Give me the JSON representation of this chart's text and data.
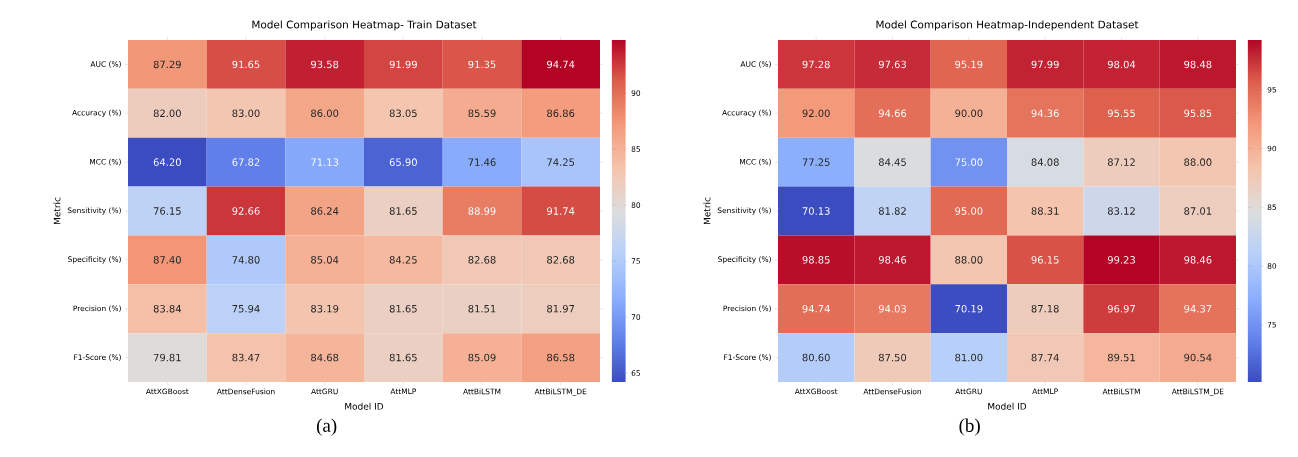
{
  "chart_data": [
    {
      "type": "heatmap",
      "title": "Model Comparison Heatmap- Train Dataset",
      "xlabel": "Model ID",
      "ylabel": "Metric",
      "categories": [
        "AttXGBoost",
        "AttDenseFusion",
        "AttGRU",
        "AttMLP",
        "AttBiLSTM",
        "AttBiLSTM_DE"
      ],
      "y_categories": [
        "AUC (%)",
        "Accuracy (%)",
        "MCC (%)",
        "Sensitivity (%)",
        "Specificity (%)",
        "Precision (%)",
        "F1-Score (%)"
      ],
      "cells": [
        [
          87.29,
          91.65,
          93.58,
          91.99,
          91.35,
          94.74
        ],
        [
          82.0,
          83.0,
          86.0,
          83.05,
          85.59,
          86.86
        ],
        [
          64.2,
          67.82,
          71.13,
          65.9,
          71.46,
          74.25
        ],
        [
          76.15,
          92.66,
          86.24,
          81.65,
          88.99,
          91.74
        ],
        [
          87.4,
          74.8,
          85.04,
          84.25,
          82.68,
          82.68
        ],
        [
          83.84,
          75.94,
          83.19,
          81.65,
          81.51,
          81.97
        ],
        [
          79.81,
          83.47,
          84.68,
          81.65,
          85.09,
          86.58
        ]
      ],
      "cell_labels": [
        [
          "87.29",
          "91.65",
          "93.58",
          "91.99",
          "91.35",
          "94.74"
        ],
        [
          "82.00",
          "83.00",
          "86.00",
          "83.05",
          "85.59",
          "86.86"
        ],
        [
          "64.20",
          "67.82",
          "71.13",
          "65.90",
          "71.46",
          "74.25"
        ],
        [
          "76.15",
          "92.66",
          "86.24",
          "81.65",
          "88.99",
          "91.74"
        ],
        [
          "87.40",
          "74.80",
          "85.04",
          "84.25",
          "82.68",
          "82.68"
        ],
        [
          "83.84",
          "75.94",
          "83.19",
          "81.65",
          "81.51",
          "81.97"
        ],
        [
          "79.81",
          "83.47",
          "84.68",
          "81.65",
          "85.09",
          "86.58"
        ]
      ],
      "clim": [
        64.2,
        94.74
      ],
      "cticks": [
        65,
        70,
        75,
        80,
        85,
        90
      ],
      "annotations": [
        "(a)"
      ]
    },
    {
      "type": "heatmap",
      "title": "Model Comparison Heatmap-Independent Dataset",
      "xlabel": "Model ID",
      "ylabel": "Metric",
      "categories": [
        "AttXGBoost",
        "AttDenseFusion",
        "AttGRU",
        "AttMLP",
        "AttBiLSTM",
        "AttBiLSTM_DE"
      ],
      "y_categories": [
        "AUC (%)",
        "Accuracy (%)",
        "MCC (%)",
        "Sensitivity (%)",
        "Specificity (%)",
        "Precision (%)",
        "F1-Score (%)"
      ],
      "cells": [
        [
          97.28,
          97.63,
          95.19,
          97.99,
          98.04,
          98.48
        ],
        [
          92.0,
          94.66,
          90.0,
          94.36,
          95.55,
          95.85
        ],
        [
          77.25,
          84.45,
          75.0,
          84.08,
          87.12,
          88.0
        ],
        [
          70.13,
          81.82,
          95.0,
          88.31,
          83.12,
          87.01
        ],
        [
          98.85,
          98.46,
          88.0,
          96.15,
          99.23,
          98.46
        ],
        [
          94.74,
          94.03,
          70.19,
          87.18,
          96.97,
          94.37
        ],
        [
          80.6,
          87.5,
          81.0,
          87.74,
          89.51,
          90.54
        ]
      ],
      "cell_labels": [
        [
          "97.28",
          "97.63",
          "95.19",
          "97.99",
          "98.04",
          "98.48"
        ],
        [
          "92.00",
          "94.66",
          "90.00",
          "94.36",
          "95.55",
          "95.85"
        ],
        [
          "77.25",
          "84.45",
          "75.00",
          "84.08",
          "87.12",
          "88.00"
        ],
        [
          "70.13",
          "81.82",
          "95.00",
          "88.31",
          "83.12",
          "87.01"
        ],
        [
          "98.85",
          "98.46",
          "88.00",
          "96.15",
          "99.23",
          "98.46"
        ],
        [
          "94.74",
          "94.03",
          "70.19",
          "87.18",
          "96.97",
          "94.37"
        ],
        [
          "80.60",
          "87.50",
          "81.00",
          "87.74",
          "89.51",
          "90.54"
        ]
      ],
      "clim": [
        70.13,
        99.23
      ],
      "cticks": [
        75,
        80,
        85,
        90,
        95
      ],
      "annotations": [
        "(b)"
      ]
    }
  ]
}
